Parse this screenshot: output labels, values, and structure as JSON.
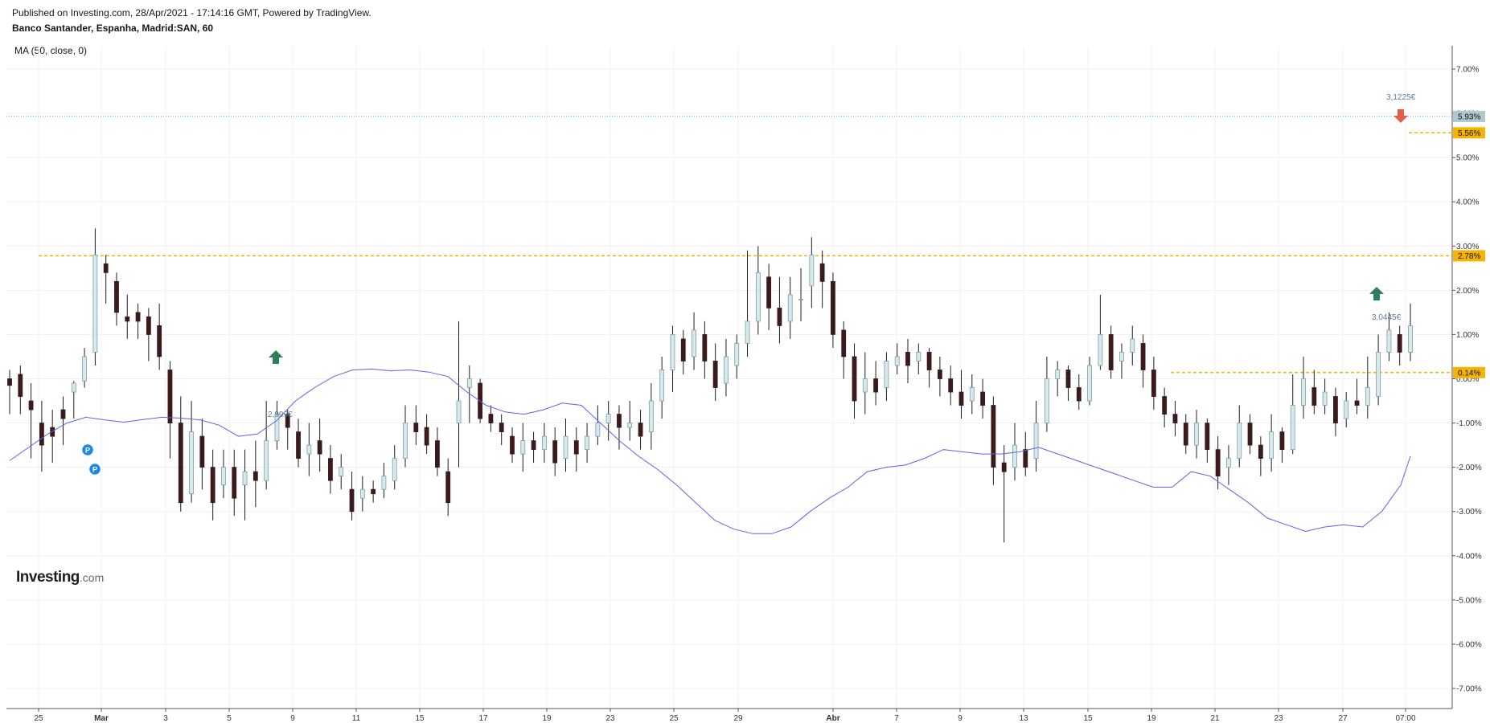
{
  "header": {
    "published": "Published on Investing.com, 28/Apr/2021 - 17:14:16 GMT, Powered by TradingView.",
    "symbol": "Banco Santander, Espanha, Madrid:SAN, 60"
  },
  "indicator": {
    "label": "MA (50, close, 0)",
    "color": "#5b63e8"
  },
  "logo": {
    "text": "Investing",
    "suffix": ".com"
  },
  "colors": {
    "up_body": "#d6e9ec",
    "up_border": "#7d9fa6",
    "down_body": "#3a1a1a",
    "wick": "#1e1e1e",
    "hline": "#f5b400",
    "current_line": "#4db6ac",
    "current_badge": "#b0c8d0",
    "buy_arrow": "#2e7d5b",
    "sell_arrow": "#e06050",
    "pin": "#1e88e5",
    "grid": "#eef0f3"
  },
  "chart_data": {
    "type": "candlestick",
    "y_unit": "%",
    "ylim": [
      -7.5,
      7.3
    ],
    "y_ticks": [
      "7.00%",
      "6.00%",
      "5.00%",
      "4.00%",
      "3.00%",
      "2.00%",
      "1.00%",
      "0.00%",
      "-1.00%",
      "-2.00%",
      "-3.00%",
      "-4.00%",
      "-5.00%",
      "-6.00%",
      "-7.00%"
    ],
    "y_tick_values": [
      7,
      6,
      5,
      4,
      3,
      2,
      1,
      0,
      -1,
      -2,
      -3,
      -4,
      -5,
      -6,
      -7
    ],
    "x_ticks": [
      "25",
      "Mar",
      "3",
      "5",
      "9",
      "11",
      "15",
      "17",
      "19",
      "23",
      "25",
      "29",
      "Abr",
      "7",
      "9",
      "13",
      "15",
      "19",
      "21",
      "23",
      "27",
      "07:00"
    ],
    "x_tick_bold": [
      "Mar",
      "Abr"
    ],
    "horizontal_levels": [
      {
        "value": 2.78,
        "label": "2.78%"
      },
      {
        "value": 0.14,
        "label": "0.14%"
      },
      {
        "value": 5.56,
        "label": "5.56%"
      }
    ],
    "current": {
      "value": 5.93,
      "label": "5.93%"
    },
    "annotations": [
      {
        "type": "buy",
        "label": "2,999€",
        "value": 0.5
      },
      {
        "type": "buy",
        "label": "3,0445€",
        "value": 2.0
      },
      {
        "type": "sell",
        "label": "3,1225€",
        "value": 5.9
      }
    ],
    "pins": [
      "P",
      "P"
    ],
    "ma_path": [
      [
        0,
        -1.85
      ],
      [
        20,
        -1.55
      ],
      [
        40,
        -1.25
      ],
      [
        60,
        -1.0
      ],
      [
        80,
        -0.87
      ],
      [
        100,
        -0.93
      ],
      [
        120,
        -0.98
      ],
      [
        140,
        -0.92
      ],
      [
        160,
        -0.87
      ],
      [
        180,
        -0.89
      ],
      [
        200,
        -0.93
      ],
      [
        220,
        -1.05
      ],
      [
        240,
        -1.3
      ],
      [
        260,
        -1.25
      ],
      [
        280,
        -0.95
      ],
      [
        300,
        -0.5
      ],
      [
        320,
        -0.2
      ],
      [
        340,
        0.05
      ],
      [
        360,
        0.2
      ],
      [
        380,
        0.22
      ],
      [
        400,
        0.18
      ],
      [
        420,
        0.2
      ],
      [
        440,
        0.15
      ],
      [
        460,
        0.05
      ],
      [
        480,
        -0.3
      ],
      [
        500,
        -0.6
      ],
      [
        520,
        -0.75
      ],
      [
        540,
        -0.8
      ],
      [
        560,
        -0.7
      ],
      [
        580,
        -0.55
      ],
      [
        600,
        -0.6
      ],
      [
        620,
        -1.0
      ],
      [
        640,
        -1.4
      ],
      [
        660,
        -1.75
      ],
      [
        680,
        -2.05
      ],
      [
        700,
        -2.4
      ],
      [
        720,
        -2.8
      ],
      [
        740,
        -3.2
      ],
      [
        760,
        -3.4
      ],
      [
        780,
        -3.5
      ],
      [
        800,
        -3.5
      ],
      [
        820,
        -3.35
      ],
      [
        840,
        -3.0
      ],
      [
        860,
        -2.7
      ],
      [
        880,
        -2.45
      ],
      [
        900,
        -2.1
      ],
      [
        920,
        -2.0
      ],
      [
        940,
        -1.95
      ],
      [
        960,
        -1.8
      ],
      [
        980,
        -1.6
      ],
      [
        1000,
        -1.65
      ],
      [
        1020,
        -1.7
      ],
      [
        1040,
        -1.7
      ],
      [
        1060,
        -1.65
      ],
      [
        1080,
        -1.55
      ],
      [
        1100,
        -1.7
      ],
      [
        1120,
        -1.85
      ],
      [
        1140,
        -2.0
      ],
      [
        1160,
        -2.15
      ],
      [
        1180,
        -2.3
      ],
      [
        1200,
        -2.45
      ],
      [
        1220,
        -2.45
      ],
      [
        1240,
        -2.1
      ],
      [
        1260,
        -2.2
      ],
      [
        1280,
        -2.5
      ],
      [
        1300,
        -2.8
      ],
      [
        1320,
        -3.15
      ],
      [
        1340,
        -3.3
      ],
      [
        1360,
        -3.45
      ],
      [
        1380,
        -3.35
      ],
      [
        1400,
        -3.3
      ],
      [
        1420,
        -3.35
      ],
      [
        1440,
        -3.0
      ],
      [
        1460,
        -2.4
      ],
      [
        1470,
        -1.75
      ]
    ],
    "candles": [
      [
        0.0,
        -0.15,
        0.2,
        -0.8
      ],
      [
        0.1,
        -0.4,
        0.3,
        -0.8
      ],
      [
        -0.5,
        -0.7,
        -0.1,
        -1.8
      ],
      [
        -1.0,
        -1.5,
        -0.5,
        -2.1
      ],
      [
        -1.1,
        -1.3,
        -0.7,
        -1.9
      ],
      [
        -0.7,
        -0.9,
        -0.4,
        -1.5
      ],
      [
        -0.3,
        -0.1,
        -0.05,
        -0.9
      ],
      [
        -0.05,
        0.5,
        0.7,
        -0.2
      ],
      [
        0.6,
        2.8,
        3.4,
        0.3
      ],
      [
        2.6,
        2.4,
        2.8,
        1.7
      ],
      [
        2.2,
        1.5,
        2.4,
        1.2
      ],
      [
        1.4,
        1.3,
        1.9,
        0.9
      ],
      [
        1.5,
        1.3,
        1.7,
        0.9
      ],
      [
        1.4,
        1.0,
        1.6,
        0.4
      ],
      [
        1.2,
        0.5,
        1.7,
        0.2
      ],
      [
        0.2,
        -1.0,
        0.4,
        -1.8
      ],
      [
        -1.0,
        -2.8,
        -0.4,
        -3.0
      ],
      [
        -2.6,
        -1.2,
        -0.5,
        -2.8
      ],
      [
        -1.3,
        -2.0,
        -0.9,
        -2.5
      ],
      [
        -2.0,
        -2.8,
        -1.6,
        -3.2
      ],
      [
        -2.4,
        -2.0,
        -1.6,
        -2.7
      ],
      [
        -2.0,
        -2.7,
        -1.6,
        -3.1
      ],
      [
        -2.4,
        -2.1,
        -1.6,
        -3.2
      ],
      [
        -2.1,
        -2.3,
        -1.4,
        -2.9
      ],
      [
        -2.3,
        -1.4,
        -0.5,
        -2.5
      ],
      [
        -1.4,
        -0.8,
        -0.5,
        -1.6
      ],
      [
        -0.8,
        -1.1,
        -0.7,
        -1.6
      ],
      [
        -1.2,
        -1.8,
        -0.9,
        -2.0
      ],
      [
        -1.7,
        -1.5,
        -1.0,
        -2.2
      ],
      [
        -1.4,
        -1.7,
        -0.9,
        -2.1
      ],
      [
        -1.8,
        -2.3,
        -1.5,
        -2.6
      ],
      [
        -2.2,
        -2.0,
        -1.7,
        -2.5
      ],
      [
        -2.5,
        -3.0,
        -2.1,
        -3.2
      ],
      [
        -2.7,
        -2.5,
        -2.2,
        -3.0
      ],
      [
        -2.5,
        -2.6,
        -2.3,
        -2.8
      ],
      [
        -2.5,
        -2.2,
        -1.9,
        -2.7
      ],
      [
        -2.3,
        -1.8,
        -1.5,
        -2.5
      ],
      [
        -1.8,
        -1.0,
        -0.6,
        -2.0
      ],
      [
        -1.0,
        -1.2,
        -0.6,
        -1.5
      ],
      [
        -1.1,
        -1.5,
        -0.8,
        -1.7
      ],
      [
        -1.4,
        -2.0,
        -1.1,
        -2.2
      ],
      [
        -2.1,
        -2.8,
        -1.8,
        -3.1
      ],
      [
        -1.0,
        -0.5,
        1.3,
        -2.0
      ],
      [
        -0.2,
        0.0,
        0.3,
        -1.0
      ],
      [
        -0.1,
        -0.9,
        0.0,
        -1.0
      ],
      [
        -0.8,
        -1.0,
        -0.6,
        -1.2
      ],
      [
        -1.0,
        -1.2,
        -0.8,
        -1.5
      ],
      [
        -1.3,
        -1.7,
        -1.1,
        -1.9
      ],
      [
        -1.7,
        -1.4,
        -1.0,
        -2.1
      ],
      [
        -1.4,
        -1.6,
        -1.2,
        -1.9
      ],
      [
        -1.6,
        -1.3,
        -1.0,
        -1.9
      ],
      [
        -1.4,
        -1.9,
        -1.1,
        -2.2
      ],
      [
        -1.8,
        -1.3,
        -0.9,
        -2.1
      ],
      [
        -1.4,
        -1.7,
        -1.1,
        -2.1
      ],
      [
        -1.6,
        -1.3,
        -1.0,
        -1.9
      ],
      [
        -1.3,
        -1.0,
        -0.6,
        -1.5
      ],
      [
        -1.0,
        -0.8,
        -0.5,
        -1.4
      ],
      [
        -0.8,
        -1.1,
        -0.6,
        -1.6
      ],
      [
        -1.1,
        -1.0,
        -0.5,
        -1.4
      ],
      [
        -1.0,
        -1.3,
        -0.7,
        -1.6
      ],
      [
        -1.2,
        -0.5,
        -0.1,
        -1.6
      ],
      [
        -0.5,
        0.2,
        0.5,
        -0.9
      ],
      [
        0.2,
        1.0,
        1.2,
        -0.3
      ],
      [
        0.9,
        0.4,
        1.1,
        0.1
      ],
      [
        0.5,
        1.1,
        1.5,
        0.2
      ],
      [
        1.0,
        0.4,
        1.3,
        0.0
      ],
      [
        0.4,
        -0.2,
        0.8,
        -0.5
      ],
      [
        -0.1,
        0.5,
        0.9,
        -0.4
      ],
      [
        0.3,
        0.8,
        1.0,
        0.0
      ],
      [
        0.8,
        1.3,
        2.9,
        0.5
      ],
      [
        1.3,
        2.4,
        3.0,
        1.0
      ],
      [
        2.3,
        1.6,
        2.6,
        1.1
      ],
      [
        1.6,
        1.2,
        2.3,
        0.8
      ],
      [
        1.3,
        1.9,
        2.3,
        0.9
      ],
      [
        1.8,
        1.8,
        2.5,
        1.3
      ],
      [
        2.1,
        2.8,
        3.2,
        1.6
      ],
      [
        2.6,
        2.2,
        2.9,
        1.6
      ],
      [
        2.2,
        1.0,
        2.4,
        0.7
      ],
      [
        1.1,
        0.5,
        1.3,
        0.0
      ],
      [
        0.5,
        -0.5,
        0.8,
        -0.9
      ],
      [
        -0.3,
        0.0,
        0.6,
        -0.8
      ],
      [
        0.0,
        -0.3,
        0.4,
        -0.6
      ],
      [
        -0.2,
        0.4,
        0.6,
        -0.5
      ],
      [
        0.3,
        0.5,
        0.8,
        0.1
      ],
      [
        0.6,
        0.3,
        0.9,
        -0.1
      ],
      [
        0.4,
        0.6,
        0.8,
        0.1
      ],
      [
        0.6,
        0.2,
        0.7,
        -0.2
      ],
      [
        0.2,
        0.0,
        0.5,
        -0.4
      ],
      [
        0.0,
        -0.3,
        0.3,
        -0.6
      ],
      [
        -0.3,
        -0.6,
        0.2,
        -0.9
      ],
      [
        -0.5,
        -0.2,
        0.1,
        -0.8
      ],
      [
        -0.3,
        -0.6,
        0.0,
        -0.9
      ],
      [
        -0.6,
        -2.0,
        -0.4,
        -2.4
      ],
      [
        -1.9,
        -2.1,
        -1.5,
        -3.7
      ],
      [
        -2.0,
        -1.5,
        -1.0,
        -2.3
      ],
      [
        -1.6,
        -2.0,
        -1.2,
        -2.2
      ],
      [
        -1.8,
        -1.0,
        -0.5,
        -2.1
      ],
      [
        -1.0,
        0.0,
        0.5,
        -1.2
      ],
      [
        0.0,
        0.2,
        0.4,
        -0.4
      ],
      [
        0.2,
        -0.2,
        0.3,
        -0.5
      ],
      [
        -0.2,
        -0.5,
        0.1,
        -0.7
      ],
      [
        -0.5,
        0.3,
        0.5,
        -0.6
      ],
      [
        0.3,
        1.0,
        1.9,
        0.2
      ],
      [
        1.0,
        0.2,
        1.2,
        0.0
      ],
      [
        0.4,
        0.6,
        0.8,
        0.0
      ],
      [
        0.6,
        0.9,
        1.2,
        0.3
      ],
      [
        0.8,
        0.2,
        1.0,
        -0.2
      ],
      [
        0.2,
        -0.4,
        0.5,
        -0.7
      ],
      [
        -0.4,
        -0.8,
        -0.2,
        -1.1
      ],
      [
        -0.8,
        -1.0,
        -0.5,
        -1.3
      ],
      [
        -1.0,
        -1.5,
        -0.8,
        -1.7
      ],
      [
        -1.5,
        -1.0,
        -0.7,
        -1.8
      ],
      [
        -1.0,
        -1.6,
        -0.9,
        -1.9
      ],
      [
        -1.6,
        -2.2,
        -1.3,
        -2.5
      ],
      [
        -2.0,
        -1.8,
        -1.5,
        -2.4
      ],
      [
        -1.8,
        -1.0,
        -0.6,
        -2.0
      ],
      [
        -1.0,
        -1.5,
        -0.8,
        -1.7
      ],
      [
        -1.5,
        -1.8,
        -1.3,
        -2.2
      ],
      [
        -1.8,
        -1.2,
        -0.8,
        -2.1
      ],
      [
        -1.2,
        -1.6,
        -1.1,
        -1.9
      ],
      [
        -1.6,
        -0.6,
        0.1,
        -1.7
      ],
      [
        -0.6,
        0.0,
        0.5,
        -0.9
      ],
      [
        -0.2,
        -0.6,
        0.2,
        -0.8
      ],
      [
        -0.6,
        -0.3,
        0.0,
        -0.8
      ],
      [
        -0.4,
        -1.0,
        -0.2,
        -1.3
      ],
      [
        -0.9,
        -0.5,
        -0.3,
        -1.1
      ],
      [
        -0.5,
        -0.6,
        0.0,
        -0.8
      ],
      [
        -0.6,
        -0.2,
        0.5,
        -0.9
      ],
      [
        -0.4,
        0.6,
        1.0,
        -0.6
      ],
      [
        0.6,
        1.1,
        1.5,
        0.4
      ],
      [
        1.0,
        0.6,
        1.2,
        0.3
      ],
      [
        0.6,
        1.2,
        1.7,
        0.4
      ]
    ]
  }
}
